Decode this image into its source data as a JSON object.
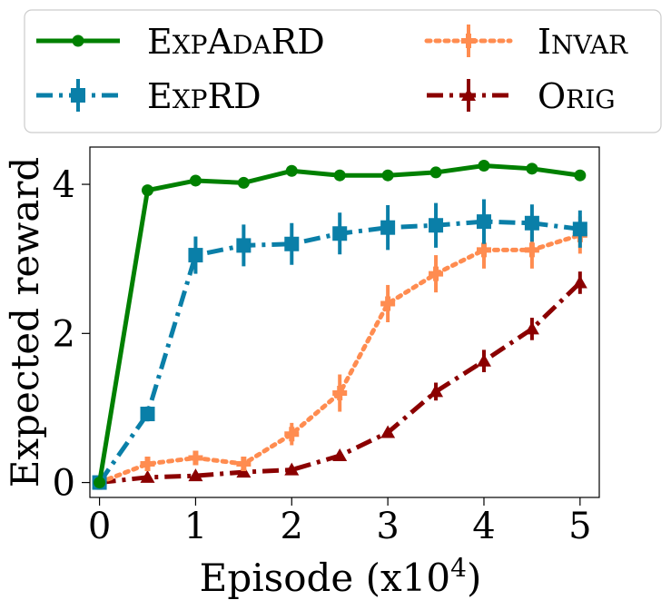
{
  "chart_data": {
    "type": "line",
    "title": "",
    "xlabel": "Episode (x10^4)",
    "xlabel_parts": {
      "text": "Episode (x10",
      "sup": "4",
      "close": ")"
    },
    "ylabel": "Expected reward",
    "xlim": [
      -0.1,
      5.2
    ],
    "ylim": [
      -0.2,
      4.5
    ],
    "xticks": [
      0,
      1,
      2,
      3,
      4,
      5
    ],
    "xtick_labels": [
      "0",
      "1",
      "2",
      "3",
      "4",
      "5"
    ],
    "yticks": [
      0,
      2,
      4
    ],
    "ytick_labels": [
      "0",
      "2",
      "4"
    ],
    "x": [
      0,
      0.5,
      1,
      1.5,
      2,
      2.5,
      3,
      3.5,
      4,
      4.5,
      5
    ],
    "legend_position": "top, outside plot, 2 columns",
    "series": [
      {
        "name": "ExpAdaRD",
        "legend": {
          "big1": "E",
          "small1": "XP",
          "big2": "A",
          "small2": "DA",
          "big3": "RD"
        },
        "color": "#008000",
        "dash": "solid",
        "marker": "circle",
        "values": [
          0,
          3.92,
          4.05,
          4.02,
          4.18,
          4.12,
          4.12,
          4.16,
          4.25,
          4.21,
          4.12
        ],
        "errors": [
          0,
          0.03,
          0.03,
          0.03,
          0.03,
          0.03,
          0.03,
          0.03,
          0.03,
          0.03,
          0.03
        ]
      },
      {
        "name": "ExpRD",
        "legend": {
          "big1": "E",
          "small1": "XP",
          "big2": "RD",
          "small2": "",
          "big3": ""
        },
        "color": "#0a7fa8",
        "dash": "dashdot",
        "marker": "square",
        "values": [
          0,
          0.92,
          3.05,
          3.18,
          3.2,
          3.34,
          3.42,
          3.45,
          3.5,
          3.48,
          3.4
        ],
        "errors": [
          0,
          0.1,
          0.25,
          0.28,
          0.28,
          0.28,
          0.3,
          0.3,
          0.3,
          0.25,
          0.25
        ]
      },
      {
        "name": "Invar",
        "legend": {
          "big1": "I",
          "small1": "NVAR",
          "big2": "",
          "small2": "",
          "big3": ""
        },
        "color": "#ff8c50",
        "dash": "dotted",
        "marker": "plus",
        "values": [
          0,
          0.25,
          0.33,
          0.25,
          0.65,
          1.2,
          2.4,
          2.8,
          3.12,
          3.12,
          3.32
        ],
        "errors": [
          0,
          0.05,
          0.05,
          0.08,
          0.15,
          0.25,
          0.25,
          0.25,
          0.25,
          0.25,
          0.25
        ]
      },
      {
        "name": "Orig",
        "legend": {
          "big1": "O",
          "small1": "RIG",
          "big2": "",
          "small2": "",
          "big3": ""
        },
        "color": "#8b0000",
        "dash": "dashdot",
        "marker": "triangle",
        "values": [
          0,
          0.07,
          0.09,
          0.14,
          0.17,
          0.36,
          0.67,
          1.22,
          1.63,
          2.06,
          2.68
        ],
        "errors": [
          0,
          0.03,
          0.03,
          0.03,
          0.03,
          0.03,
          0.05,
          0.12,
          0.15,
          0.15,
          0.15
        ]
      }
    ]
  }
}
